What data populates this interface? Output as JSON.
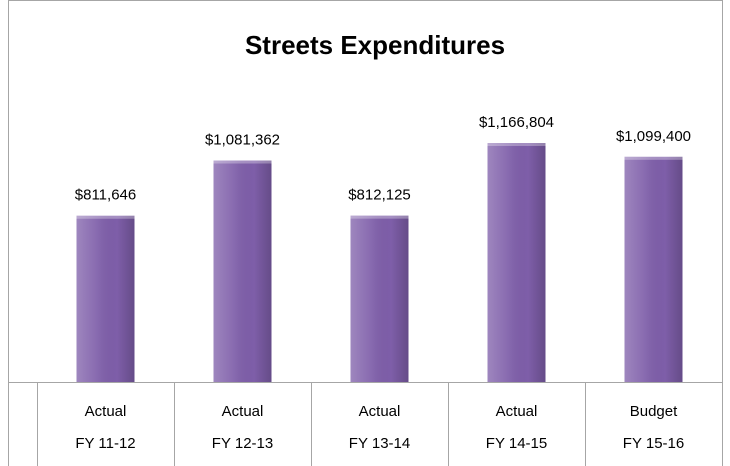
{
  "chart_data": {
    "type": "bar",
    "title": "Streets Expenditures",
    "categories": [
      [
        "Actual",
        "FY 11-12"
      ],
      [
        "Actual",
        "FY 12-13"
      ],
      [
        "Actual",
        "FY 13-14"
      ],
      [
        "Actual",
        "FY 14-15"
      ],
      [
        "Budget",
        "FY 15-16"
      ]
    ],
    "values": [
      811646,
      1081362,
      812125,
      1166804,
      1099400
    ],
    "value_labels": [
      "$811,646",
      "$1,081,362",
      "$812,125",
      "$1,166,804",
      "$1,099,400"
    ],
    "color": "#7e5ea9"
  }
}
